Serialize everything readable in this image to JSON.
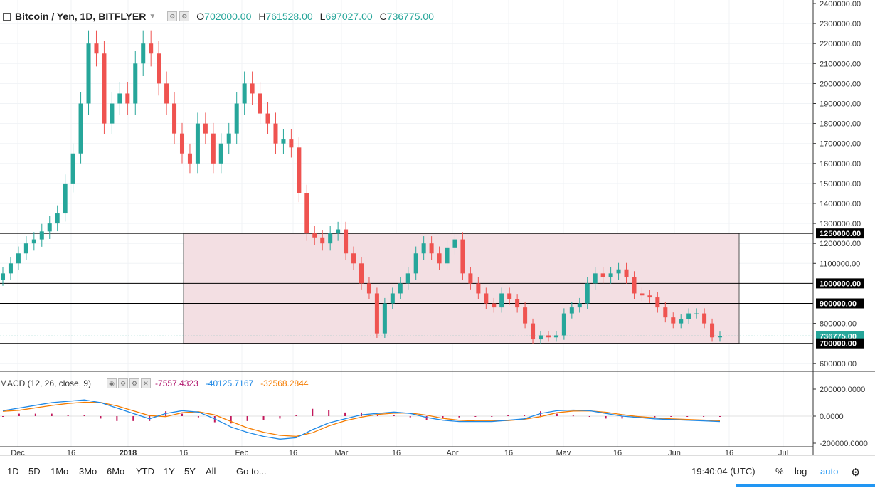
{
  "header": {
    "symbol": "Bitcoin / Yen, 1D, BITFLYER",
    "open_label": "O",
    "open": "702000.00",
    "high_label": "H",
    "high": "761528.00",
    "low_label": "L",
    "low": "697027.00",
    "close_label": "C",
    "close": "736775.00"
  },
  "macd": {
    "title": "MACD (12, 26, close, 9)",
    "histogram": "-7557.4323",
    "macd_line": "-40125.7167",
    "signal_line": "-32568.2844"
  },
  "price_axis": {
    "ticks": [
      "2400000.00",
      "2300000.00",
      "2200000.00",
      "2100000.00",
      "2000000.00",
      "1900000.00",
      "1800000.00",
      "1700000.00",
      "1600000.00",
      "1500000.00",
      "1400000.00",
      "1300000.00",
      "1200000.00",
      "1100000.00",
      "800000.00",
      "600000.00"
    ],
    "tick_values": [
      2400000,
      2300000,
      2200000,
      2100000,
      2000000,
      1900000,
      1800000,
      1700000,
      1600000,
      1500000,
      1400000,
      1300000,
      1200000,
      1100000,
      800000,
      600000
    ],
    "badges": [
      {
        "label": "1250000.00",
        "value": 1250000,
        "color": "#000000"
      },
      {
        "label": "1000000.00",
        "value": 1000000,
        "color": "#000000"
      },
      {
        "label": "900000.00",
        "value": 900000,
        "color": "#000000"
      },
      {
        "label": "736775.00",
        "value": 736775,
        "color": "#26a69a"
      },
      {
        "label": "700000.00",
        "value": 700000,
        "color": "#000000"
      }
    ]
  },
  "macd_axis": {
    "ticks": [
      "200000.0000",
      "0.0000",
      "-200000.0000"
    ],
    "tick_values": [
      200000,
      0,
      -200000
    ]
  },
  "time_axis": {
    "labels": [
      "Dec",
      "16",
      "2018",
      "16",
      "Feb",
      "16",
      "Mar",
      "16",
      "Apr",
      "16",
      "May",
      "16",
      "Jun",
      "16",
      "Jul"
    ]
  },
  "toolbar": {
    "ranges": [
      "1D",
      "5D",
      "1Mo",
      "3Mo",
      "6Mo",
      "YTD",
      "1Y",
      "5Y",
      "All"
    ],
    "goto": "Go to...",
    "time": "19:40:04 (UTC)",
    "percent": "%",
    "log": "log",
    "auto": "auto"
  },
  "colors": {
    "up": "#26a69a",
    "down": "#ef5350",
    "range_box": "#f3dfe3",
    "macd_line": "#1e88e5",
    "signal_line": "#f57c00",
    "histogram": "#c2185b"
  },
  "chart_data": {
    "type": "candlestick",
    "symbol": "Bitcoin / Yen",
    "interval": "1D",
    "exchange": "BITFLYER",
    "horizontal_levels": [
      1250000,
      1000000,
      900000,
      700000
    ],
    "range_box": {
      "top": 1250000,
      "bottom": 700000
    },
    "approx_close_series": [
      1050000,
      1100000,
      1150000,
      1200000,
      1220000,
      1260000,
      1300000,
      1350000,
      1500000,
      1650000,
      1900000,
      2200000,
      2150000,
      1800000,
      1900000,
      1950000,
      1900000,
      2100000,
      2200000,
      2150000,
      2000000,
      1900000,
      1750000,
      1650000,
      1600000,
      1800000,
      1750000,
      1600000,
      1700000,
      1750000,
      1900000,
      2000000,
      1950000,
      1850000,
      1800000,
      1700000,
      1720000,
      1680000,
      1450000,
      1250000,
      1230000,
      1200000,
      1250000,
      1270000,
      1150000,
      1100000,
      1000000,
      950000,
      750000,
      900000,
      950000,
      1000000,
      1050000,
      1150000,
      1200000,
      1150000,
      1100000,
      1180000,
      1220000,
      1050000,
      1000000,
      950000,
      900000,
      880000,
      950000,
      920000,
      880000,
      800000,
      720000,
      740000,
      730000,
      740000,
      850000,
      880000,
      900000,
      1000000,
      1050000,
      1030000,
      1050000,
      1070000,
      1030000,
      950000,
      940000,
      930000,
      880000,
      830000,
      800000,
      820000,
      850000,
      850000,
      800000,
      730000,
      736775
    ],
    "macd_approx": [
      40000,
      60000,
      80000,
      100000,
      110000,
      120000,
      100000,
      60000,
      20000,
      -20000,
      20000,
      40000,
      30000,
      -20000,
      -80000,
      -120000,
      -150000,
      -170000,
      -160000,
      -100000,
      -50000,
      -20000,
      10000,
      20000,
      30000,
      20000,
      -10000,
      -30000,
      -40000,
      -40000,
      -40000,
      -30000,
      -20000,
      20000,
      40000,
      45000,
      40000,
      20000,
      0,
      -10000,
      -20000,
      -25000,
      -30000,
      -35000,
      -40000
    ]
  }
}
